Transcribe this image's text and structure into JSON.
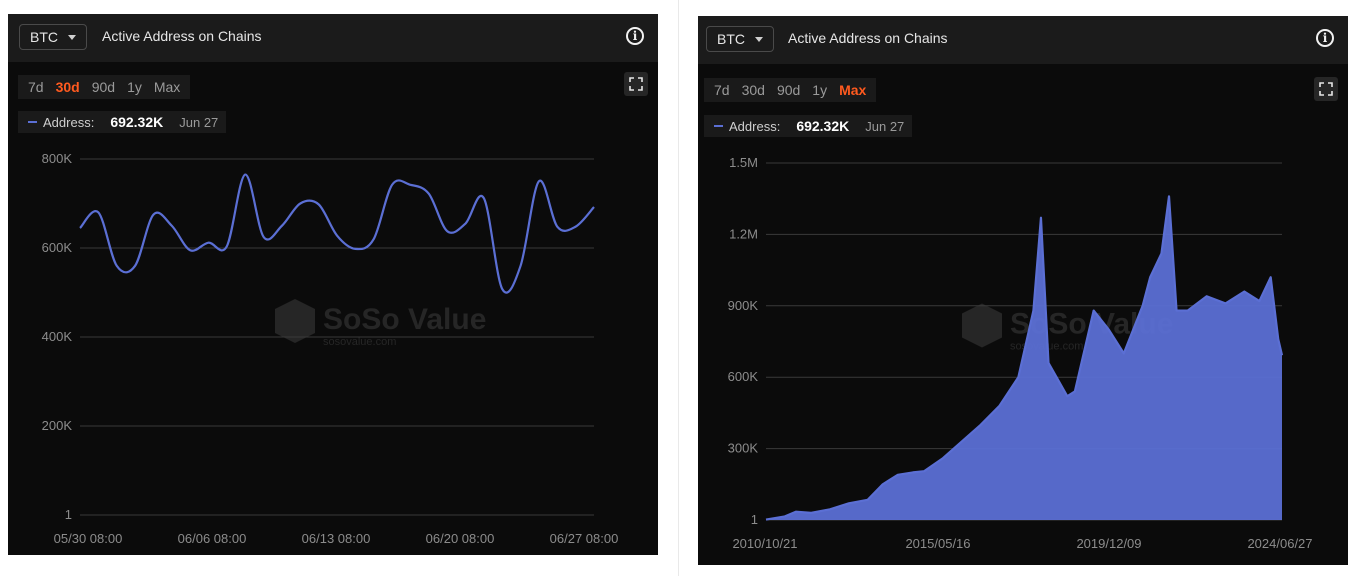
{
  "panels": [
    {
      "coin": "BTC",
      "title": "Active Address on Chains",
      "ranges": [
        "7d",
        "30d",
        "90d",
        "1y",
        "Max"
      ],
      "active_range": "30d",
      "legend": {
        "label": "Address:",
        "value": "692.32K",
        "date": "Jun 27"
      },
      "watermark": {
        "brand": "SoSo Value",
        "url": "sosovalue.com"
      }
    },
    {
      "coin": "BTC",
      "title": "Active Address on Chains",
      "ranges": [
        "7d",
        "30d",
        "90d",
        "1y",
        "Max"
      ],
      "active_range": "Max",
      "legend": {
        "label": "Address:",
        "value": "692.32K",
        "date": "Jun 27"
      },
      "watermark": {
        "brand": "SoSo Value",
        "url": "sosovalue.com"
      }
    }
  ],
  "colors": {
    "line": "#5b6fd4",
    "accent": "#ff5a1f",
    "background": "#0b0b0b",
    "grid": "#3a3a3a"
  },
  "icons": {
    "info": "info-circle-icon",
    "fullscreen": "fullscreen-icon",
    "dropdown": "chevron-down-icon"
  },
  "chart_data": [
    {
      "type": "line",
      "series": [
        {
          "name": "Address",
          "values": [
            [
              0,
              645
            ],
            [
              1,
              680
            ],
            [
              2,
              560
            ],
            [
              3,
              560
            ],
            [
              4,
              675
            ],
            [
              5,
              650
            ],
            [
              6,
              595
            ],
            [
              7,
              612
            ],
            [
              8,
              604
            ],
            [
              9,
              765
            ],
            [
              10,
              625
            ],
            [
              11,
              650
            ],
            [
              12,
              700
            ],
            [
              13,
              698
            ],
            [
              14,
              628
            ],
            [
              15,
              598
            ],
            [
              16,
              620
            ],
            [
              17,
              742
            ],
            [
              18,
              742
            ],
            [
              19,
              722
            ],
            [
              20,
              638
            ],
            [
              21,
              655
            ],
            [
              22,
              712
            ],
            [
              23,
              508
            ],
            [
              24,
              560
            ],
            [
              25,
              750
            ],
            [
              26,
              648
            ],
            [
              27,
              648
            ],
            [
              28,
              692
            ]
          ]
        }
      ],
      "x_ticks": [
        "05/30 08:00",
        "06/06 08:00",
        "06/13 08:00",
        "06/20 08:00",
        "06/27 08:00"
      ],
      "y_ticks": [
        "1",
        "200K",
        "400K",
        "600K",
        "800K"
      ],
      "ylim": [
        0,
        800000
      ],
      "grid": true
    },
    {
      "type": "area",
      "series": [
        {
          "name": "Address",
          "values": [
            [
              2010.8,
              2
            ],
            [
              2011.3,
              15
            ],
            [
              2011.6,
              35
            ],
            [
              2012.0,
              30
            ],
            [
              2012.5,
              45
            ],
            [
              2013.0,
              70
            ],
            [
              2013.5,
              85
            ],
            [
              2013.9,
              150
            ],
            [
              2014.3,
              190
            ],
            [
              2014.7,
              200
            ],
            [
              2015.0,
              205
            ],
            [
              2015.5,
              260
            ],
            [
              2016.0,
              330
            ],
            [
              2016.5,
              400
            ],
            [
              2017.0,
              480
            ],
            [
              2017.5,
              600
            ],
            [
              2017.9,
              880
            ],
            [
              2018.1,
              1270
            ],
            [
              2018.3,
              660
            ],
            [
              2018.8,
              520
            ],
            [
              2019.0,
              540
            ],
            [
              2019.5,
              880
            ],
            [
              2019.9,
              800
            ],
            [
              2020.3,
              700
            ],
            [
              2020.8,
              900
            ],
            [
              2021.0,
              1020
            ],
            [
              2021.3,
              1120
            ],
            [
              2021.5,
              1360
            ],
            [
              2021.7,
              880
            ],
            [
              2022.0,
              880
            ],
            [
              2022.5,
              940
            ],
            [
              2023.0,
              910
            ],
            [
              2023.5,
              960
            ],
            [
              2023.9,
              920
            ],
            [
              2024.2,
              1020
            ],
            [
              2024.4,
              760
            ],
            [
              2024.5,
              692
            ]
          ]
        }
      ],
      "x_ticks": [
        "2010/10/21",
        "2015/05/16",
        "2019/12/09",
        "2024/06/27"
      ],
      "y_ticks": [
        "1",
        "300K",
        "600K",
        "900K",
        "1.2M",
        "1.5M"
      ],
      "ylim": [
        0,
        1500000
      ],
      "grid": true
    }
  ]
}
